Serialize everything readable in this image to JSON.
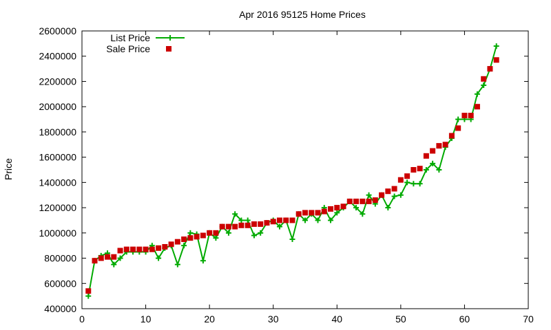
{
  "chart_data": {
    "type": "line",
    "title": "Apr 2016 95125 Home Prices",
    "xlabel": "",
    "ylabel": "Price",
    "xlim": [
      0,
      70
    ],
    "ylim": [
      400000,
      2600000
    ],
    "xticks": [
      0,
      10,
      20,
      30,
      40,
      50,
      60,
      70
    ],
    "yticks": [
      400000,
      600000,
      800000,
      1000000,
      1200000,
      1400000,
      1600000,
      1800000,
      2000000,
      2200000,
      2400000,
      2600000
    ],
    "grid": false,
    "legend_position": "top-left",
    "colors": {
      "list": "#00aa00",
      "sale": "#cc0000"
    },
    "series": [
      {
        "name": "List Price",
        "style": "line-plus",
        "x": [
          1,
          2,
          3,
          4,
          5,
          6,
          7,
          8,
          9,
          10,
          11,
          12,
          13,
          14,
          15,
          16,
          17,
          18,
          19,
          20,
          21,
          22,
          23,
          24,
          25,
          26,
          27,
          28,
          29,
          30,
          31,
          32,
          33,
          34,
          35,
          36,
          37,
          38,
          39,
          40,
          41,
          42,
          43,
          44,
          45,
          46,
          47,
          48,
          49,
          50,
          51,
          52,
          53,
          54,
          55,
          56,
          57,
          58,
          59,
          60,
          61,
          62,
          63,
          64,
          65
        ],
        "values": [
          500000,
          780000,
          820000,
          840000,
          750000,
          800000,
          850000,
          850000,
          850000,
          850000,
          900000,
          800000,
          880000,
          900000,
          750000,
          900000,
          1000000,
          990000,
          780000,
          1000000,
          960000,
          1050000,
          1000000,
          1150000,
          1100000,
          1100000,
          980000,
          1000000,
          1080000,
          1100000,
          1050000,
          1100000,
          950000,
          1150000,
          1100000,
          1150000,
          1100000,
          1200000,
          1100000,
          1160000,
          1200000,
          1250000,
          1200000,
          1150000,
          1300000,
          1230000,
          1300000,
          1200000,
          1290000,
          1300000,
          1400000,
          1390000,
          1390000,
          1500000,
          1550000,
          1500000,
          1680000,
          1750000,
          1900000,
          1900000,
          1900000,
          2100000,
          2170000,
          2300000,
          2480000
        ]
      },
      {
        "name": "Sale Price",
        "style": "square-markers",
        "x": [
          1,
          2,
          3,
          4,
          5,
          6,
          7,
          8,
          9,
          10,
          11,
          12,
          13,
          14,
          15,
          16,
          17,
          18,
          19,
          20,
          21,
          22,
          23,
          24,
          25,
          26,
          27,
          28,
          29,
          30,
          31,
          32,
          33,
          34,
          35,
          36,
          37,
          38,
          39,
          40,
          41,
          42,
          43,
          44,
          45,
          46,
          47,
          48,
          49,
          50,
          51,
          52,
          53,
          54,
          55,
          56,
          57,
          58,
          59,
          60,
          61,
          62,
          63,
          64,
          65
        ],
        "values": [
          540000,
          780000,
          800000,
          810000,
          810000,
          860000,
          870000,
          870000,
          870000,
          870000,
          870000,
          880000,
          890000,
          910000,
          930000,
          950000,
          960000,
          970000,
          980000,
          1000000,
          1000000,
          1050000,
          1050000,
          1050000,
          1060000,
          1060000,
          1070000,
          1070000,
          1080000,
          1090000,
          1100000,
          1100000,
          1100000,
          1150000,
          1160000,
          1160000,
          1160000,
          1170000,
          1190000,
          1200000,
          1210000,
          1250000,
          1250000,
          1250000,
          1250000,
          1260000,
          1300000,
          1330000,
          1350000,
          1420000,
          1450000,
          1500000,
          1510000,
          1610000,
          1650000,
          1690000,
          1700000,
          1770000,
          1830000,
          1930000,
          1930000,
          2000000,
          2220000,
          2300000,
          2370000
        ]
      }
    ]
  }
}
